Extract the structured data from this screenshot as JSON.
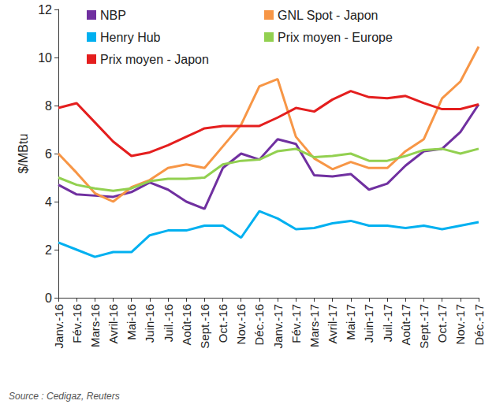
{
  "chart_data": {
    "type": "line",
    "ylabel": "$/MBtu",
    "source": "Source : Cedigaz, Reuters",
    "categories": [
      "Janv.-16",
      "Fév.-16",
      "Mars-16",
      "Avril-16",
      "Mai-16",
      "Juin-16",
      "Juil.-16",
      "Août-16",
      "Sept.-16",
      "Oct.-16",
      "Nov.-16",
      "Déc.-16",
      "Janv.-17",
      "Fév.-17",
      "Mars-17",
      "Avril-17",
      "Mai-17",
      "Juin-17",
      "Juil.-17",
      "Août-17",
      "Sept.-17",
      "Oct.-17",
      "Nov.-17",
      "Déc.-17"
    ],
    "series": [
      {
        "name": "NBP",
        "color": "#7030a0",
        "values": [
          4.7,
          4.3,
          4.25,
          4.2,
          4.4,
          4.8,
          4.5,
          4.0,
          3.7,
          5.4,
          6.0,
          5.75,
          6.6,
          6.4,
          5.1,
          5.05,
          5.15,
          4.5,
          4.75,
          5.5,
          6.1,
          6.2,
          6.9,
          8.05
        ]
      },
      {
        "name": "GNL Spot - Japon",
        "color": "#f79646",
        "values": [
          6.0,
          5.2,
          4.35,
          4.0,
          4.6,
          4.9,
          5.4,
          5.55,
          5.4,
          6.3,
          7.2,
          8.8,
          9.1,
          6.7,
          5.8,
          5.35,
          5.65,
          5.4,
          5.4,
          6.1,
          6.6,
          8.3,
          9.0,
          10.45
        ]
      },
      {
        "name": "Henry Hub",
        "color": "#00b0f0",
        "values": [
          2.3,
          2.0,
          1.7,
          1.9,
          1.9,
          2.6,
          2.8,
          2.8,
          3.0,
          3.0,
          2.5,
          3.6,
          3.3,
          2.85,
          2.9,
          3.1,
          3.2,
          3.0,
          3.0,
          2.9,
          3.0,
          2.85,
          3.0,
          3.15
        ]
      },
      {
        "name": "Prix moyen - Europe",
        "color": "#92d050",
        "values": [
          5.0,
          4.7,
          4.55,
          4.45,
          4.55,
          4.85,
          4.95,
          4.95,
          5.0,
          5.55,
          5.7,
          5.75,
          6.1,
          6.2,
          5.85,
          5.9,
          6.0,
          5.7,
          5.7,
          5.9,
          6.15,
          6.2,
          6.0,
          6.2
        ]
      },
      {
        "name": "Prix moyen - Japon",
        "color": "#e41e1e",
        "values": [
          7.9,
          8.1,
          7.3,
          6.5,
          5.9,
          6.05,
          6.35,
          6.7,
          7.05,
          7.15,
          7.15,
          7.15,
          7.5,
          7.9,
          7.75,
          8.25,
          8.6,
          8.35,
          8.3,
          8.4,
          8.1,
          7.85,
          7.85,
          8.05
        ]
      }
    ],
    "ylim": [
      0,
      12
    ],
    "yticks": [
      0,
      2,
      4,
      6,
      8,
      10,
      12
    ],
    "grid": false,
    "legend": "upper left",
    "marker": "none"
  }
}
